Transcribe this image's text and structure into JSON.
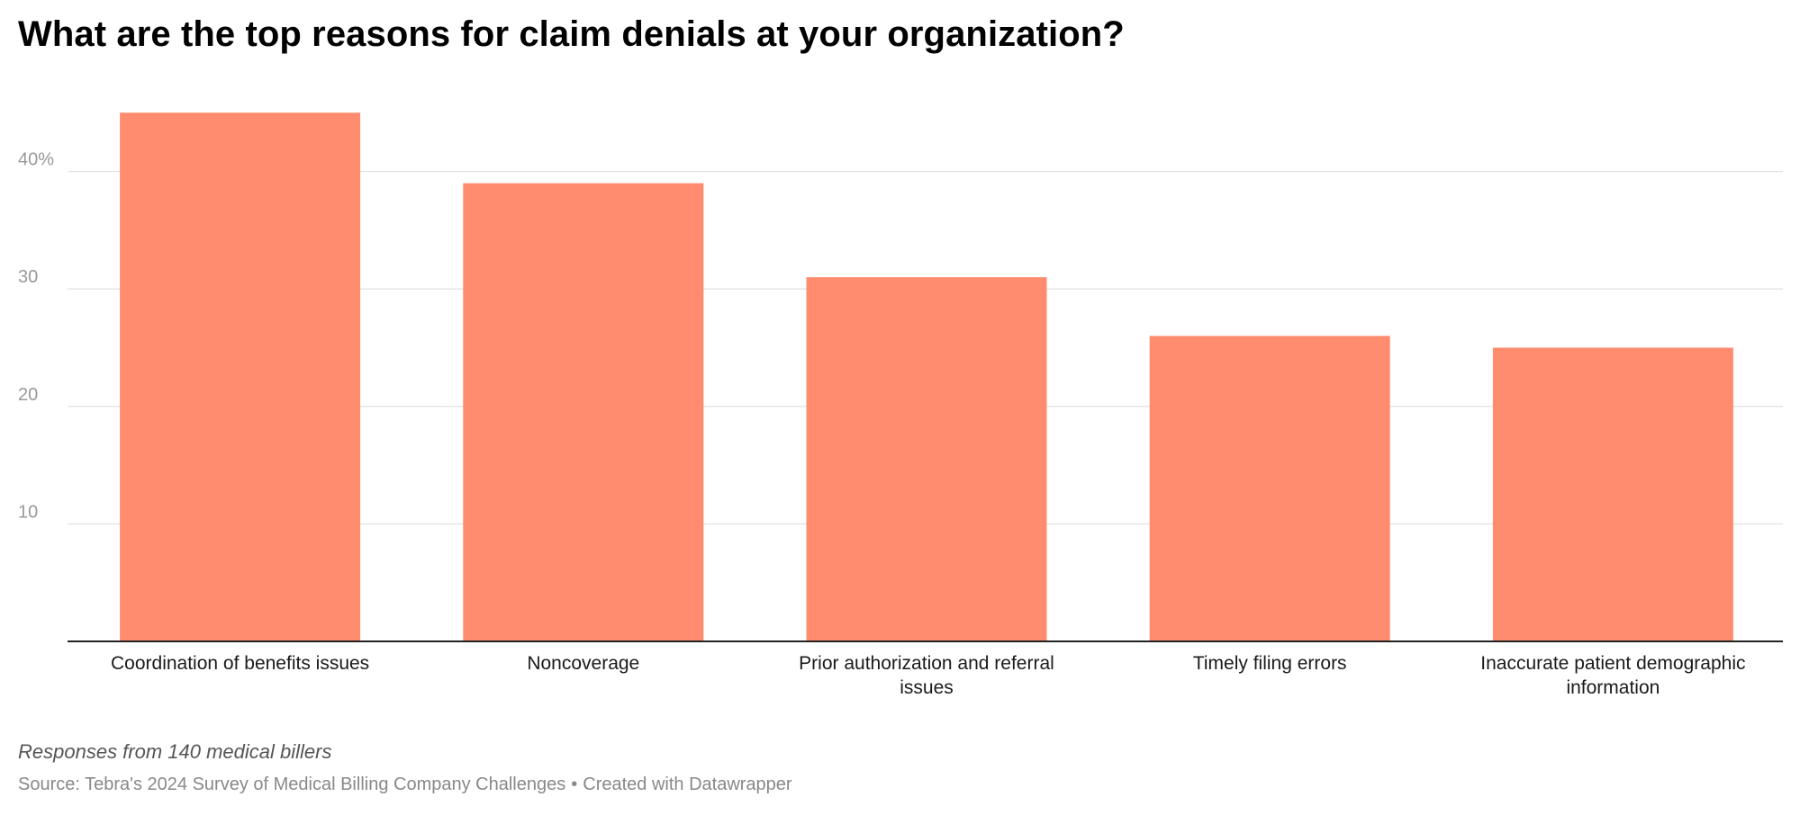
{
  "chart_data": {
    "type": "bar",
    "title": "What are the top reasons for claim denials at your organization?",
    "categories": [
      [
        "Coordination of benefits issues"
      ],
      [
        "Noncoverage"
      ],
      [
        "Prior authorization and referral",
        "issues"
      ],
      [
        "Timely filing errors"
      ],
      [
        "Inaccurate patient demographic",
        "information"
      ]
    ],
    "values": [
      45,
      39,
      31,
      26,
      25
    ],
    "yticks": [
      {
        "value": 10,
        "label": "10"
      },
      {
        "value": 20,
        "label": "20"
      },
      {
        "value": 30,
        "label": "30"
      },
      {
        "value": 40,
        "label": "40%"
      }
    ],
    "ylim": [
      0,
      48
    ],
    "grid": true,
    "xlabel": "",
    "ylabel": "",
    "bar_color": "#ff8c6e",
    "gridline_color": "#e2e2e2",
    "tick_label_color": "#999999"
  },
  "notes": "Responses from 140 medical billers",
  "source": {
    "label": "Source: Tebra's 2024 Survey of Medical Billing Company Challenges",
    "separator": "•",
    "credit": "Created with Datawrapper"
  }
}
